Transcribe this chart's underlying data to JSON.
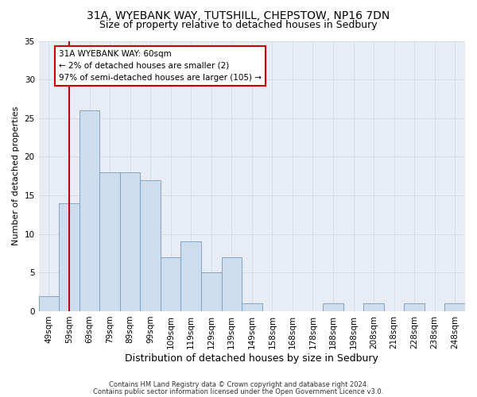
{
  "title1": "31A, WYEBANK WAY, TUTSHILL, CHEPSTOW, NP16 7DN",
  "title2": "Size of property relative to detached houses in Sedbury",
  "xlabel": "Distribution of detached houses by size in Sedbury",
  "ylabel": "Number of detached properties",
  "categories": [
    "49sqm",
    "59sqm",
    "69sqm",
    "79sqm",
    "89sqm",
    "99sqm",
    "109sqm",
    "119sqm",
    "129sqm",
    "139sqm",
    "149sqm",
    "158sqm",
    "168sqm",
    "178sqm",
    "188sqm",
    "198sqm",
    "208sqm",
    "218sqm",
    "228sqm",
    "238sqm",
    "248sqm"
  ],
  "values": [
    2,
    14,
    26,
    18,
    18,
    17,
    7,
    9,
    5,
    7,
    1,
    0,
    0,
    0,
    1,
    0,
    1,
    0,
    1,
    0,
    1
  ],
  "bar_color": "#ccdded",
  "bar_edge_color": "#7799bb",
  "bar_width": 1.0,
  "vline_x": 1.0,
  "vline_color": "#bb0000",
  "annotation_text": "31A WYEBANK WAY: 60sqm\n← 2% of detached houses are smaller (2)\n97% of semi-detached houses are larger (105) →",
  "annotation_box_color": "#ffffff",
  "annotation_box_edge": "#cc0000",
  "ylim": [
    0,
    35
  ],
  "yticks": [
    0,
    5,
    10,
    15,
    20,
    25,
    30,
    35
  ],
  "grid_color": "#d8dce8",
  "bg_color": "#e8ecf4",
  "fig_bg_color": "#ffffff",
  "footer1": "Contains HM Land Registry data © Crown copyright and database right 2024.",
  "footer2": "Contains public sector information licensed under the Open Government Licence v3.0.",
  "title1_fontsize": 10,
  "title2_fontsize": 9,
  "xlabel_fontsize": 9,
  "ylabel_fontsize": 8,
  "tick_fontsize": 7.5,
  "annot_fontsize": 7.5,
  "footer_fontsize": 6
}
